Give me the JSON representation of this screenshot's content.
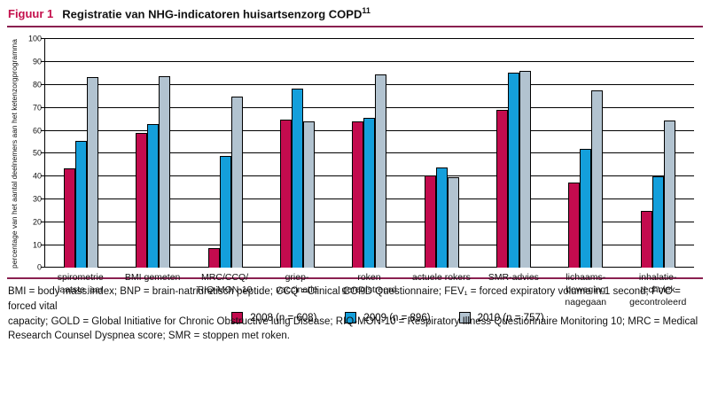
{
  "header": {
    "figure_label": "Figuur 1",
    "title": "Registratie van NHG-indicatoren huisartsenzorg COPD",
    "superscript": "11"
  },
  "chart_data": {
    "type": "bar",
    "title": "Registratie van NHG-indicatoren huisartsenzorg COPD",
    "ylabel": "percentage van het aantal deelnemers aan het ketenzorgprogramma",
    "xlabel": "",
    "ylim": [
      0,
      100
    ],
    "ytick_step": 10,
    "grid": true,
    "legend_position": "bottom",
    "categories": [
      "spirometrie\nlaatste jaar",
      "BMI gemeten",
      "MRC/CCQ/\nRIQ-MON-10",
      "griep-\nvaccinatie",
      "roken\ngeregistreerd",
      "actuele rokers",
      "SMR-advies",
      "lichaams-\nbeweging\nnagegaan",
      "inhalatie-\ntechniek\ngecontroleerd"
    ],
    "series": [
      {
        "name": "2008 (n = 608)",
        "color": "#c30b4e",
        "values": [
          43.5,
          59,
          8.5,
          65,
          64,
          40.5,
          69,
          37.5,
          25
        ]
      },
      {
        "name": "2009 (n = 896)",
        "color": "#149fdb",
        "values": [
          55.5,
          63,
          49,
          78.5,
          65.5,
          44,
          85.5,
          52,
          40
        ]
      },
      {
        "name": "2010 (n = 757)",
        "color": "#b2c3d0",
        "values": [
          83.5,
          84,
          75,
          64,
          84.5,
          39.5,
          86,
          77.5,
          64.5
        ]
      }
    ]
  },
  "footnote": {
    "lines": [
      "BMI = body mass index; BNP = brain-natriuretisch peptide; CCQ =Clinical COPD Questionnaire; FEV₁ = forced expiratory volume in 1 second; FVC = forced vital",
      "capacity; GOLD = Global Initiative for Chronic Obstructive lung Disease; RIQ-MON-10 = Respiratory Illness Questionnaire Monitoring 10; MRC = Medical",
      "Research Counsel Dyspnea score; SMR = stoppen met roken."
    ]
  },
  "colors": {
    "rule": "#8a2050",
    "figure_label": "#c4104c",
    "bar_border": "#000000"
  }
}
